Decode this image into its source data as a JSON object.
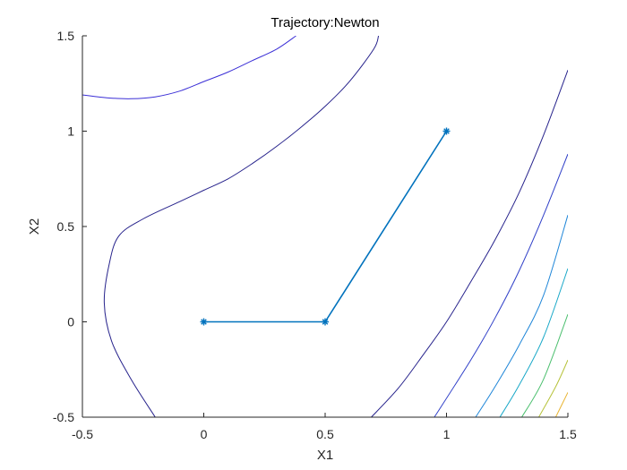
{
  "chart_data": {
    "type": "line",
    "title": "Trajectory:Newton",
    "xlabel": "X1",
    "ylabel": "X2",
    "xlim": [
      -0.5,
      1.5
    ],
    "ylim": [
      -0.5,
      1.5
    ],
    "xticks": [
      -0.5,
      0,
      0.5,
      1,
      1.5
    ],
    "xtick_labels": [
      "-0.5",
      "0",
      "0.5",
      "1",
      "1.5"
    ],
    "yticks": [
      -0.5,
      0,
      0.5,
      1,
      1.5
    ],
    "ytick_labels": [
      "-0.5",
      "0",
      "0.5",
      "1",
      "1.5"
    ],
    "grid": false,
    "axis_color": "#262626",
    "trajectory": {
      "color": "#0072BD",
      "marker": "asterisk",
      "points": [
        {
          "x": 1,
          "y": 1
        },
        {
          "x": 0.5,
          "y": 0
        },
        {
          "x": 0,
          "y": 0
        }
      ]
    },
    "contours": [
      {
        "color": "#3B2FD6",
        "points": [
          [
            -0.5,
            1.19
          ],
          [
            -0.4,
            1.175
          ],
          [
            -0.3,
            1.17
          ],
          [
            -0.2,
            1.18
          ],
          [
            -0.1,
            1.21
          ],
          [
            0.0,
            1.26
          ],
          [
            0.1,
            1.31
          ],
          [
            0.2,
            1.37
          ],
          [
            0.3,
            1.43
          ],
          [
            0.38,
            1.5
          ]
        ]
      },
      {
        "color": "#27238C",
        "points": [
          [
            -0.2,
            -0.5
          ],
          [
            -0.3,
            -0.3
          ],
          [
            -0.38,
            -0.1
          ],
          [
            -0.41,
            0.1
          ],
          [
            -0.39,
            0.3
          ],
          [
            -0.35,
            0.45
          ],
          [
            -0.25,
            0.54
          ],
          [
            -0.1,
            0.63
          ],
          [
            0.0,
            0.69
          ],
          [
            0.1,
            0.75
          ],
          [
            0.2,
            0.83
          ],
          [
            0.3,
            0.92
          ],
          [
            0.4,
            1.02
          ],
          [
            0.5,
            1.13
          ],
          [
            0.6,
            1.26
          ],
          [
            0.7,
            1.43
          ],
          [
            0.72,
            1.5
          ]
        ]
      },
      {
        "color": "#27238C",
        "points": [
          [
            0.69,
            -0.5
          ],
          [
            0.8,
            -0.35
          ],
          [
            0.9,
            -0.18
          ],
          [
            1.0,
            0.0
          ],
          [
            1.1,
            0.21
          ],
          [
            1.2,
            0.43
          ],
          [
            1.3,
            0.68
          ],
          [
            1.4,
            0.98
          ],
          [
            1.5,
            1.32
          ]
        ]
      },
      {
        "color": "#2F3FC8",
        "points": [
          [
            0.95,
            -0.5
          ],
          [
            1.1,
            -0.2
          ],
          [
            1.2,
            0.02
          ],
          [
            1.3,
            0.27
          ],
          [
            1.4,
            0.56
          ],
          [
            1.5,
            0.88
          ]
        ]
      },
      {
        "color": "#1F86D8",
        "points": [
          [
            1.12,
            -0.5
          ],
          [
            1.2,
            -0.34
          ],
          [
            1.3,
            -0.12
          ],
          [
            1.4,
            0.14
          ],
          [
            1.5,
            0.56
          ]
        ]
      },
      {
        "color": "#19A8C8",
        "points": [
          [
            1.22,
            -0.5
          ],
          [
            1.3,
            -0.33
          ],
          [
            1.4,
            -0.08
          ],
          [
            1.5,
            0.28
          ]
        ]
      },
      {
        "color": "#4BBF6E",
        "points": [
          [
            1.31,
            -0.5
          ],
          [
            1.4,
            -0.3
          ],
          [
            1.5,
            0.04
          ]
        ]
      },
      {
        "color": "#B6C23A",
        "points": [
          [
            1.38,
            -0.5
          ],
          [
            1.45,
            -0.34
          ],
          [
            1.5,
            -0.2
          ]
        ]
      },
      {
        "color": "#E8B432",
        "points": [
          [
            1.45,
            -0.5
          ],
          [
            1.5,
            -0.37
          ]
        ]
      }
    ]
  }
}
